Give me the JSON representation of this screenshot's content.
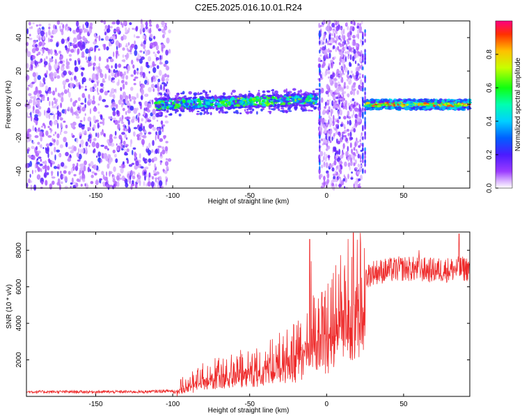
{
  "figure_title": "C2E5.2025.016.10.01.R24",
  "colors": {
    "snr_line": "#ee2a2a",
    "spectrogram_low": "#8a2be2",
    "spectrogram_high": "#ff0000",
    "axis": "#000000"
  },
  "chart_data": [
    {
      "type": "heatmap",
      "xlabel": "Height of straight line (km)",
      "ylabel": "Frequency (Hz)",
      "xlim": [
        -195,
        93
      ],
      "ylim": [
        -50,
        50
      ],
      "xticks": [
        -150,
        -100,
        -50,
        0,
        50
      ],
      "yticks": [
        -40,
        -20,
        0,
        20,
        40
      ],
      "colorbar": {
        "label": "Normalized spectral amplitude",
        "range": [
          0.0,
          1.0
        ],
        "ticks": [
          0.0,
          0.2,
          0.4,
          0.6,
          0.8
        ],
        "colormap": "rainbow (purple-blue-cyan-green-yellow-red)"
      },
      "regions": [
        {
          "x_from": -195,
          "x_to": -102,
          "description_level": 0.15,
          "spread": "full band scattered noise"
        },
        {
          "x_from": -111,
          "x_to": -6,
          "center_hz": [
            0,
            1,
            2,
            3,
            2
          ],
          "half_width_hz": 5,
          "level": 0.4
        },
        {
          "x_from": -5,
          "x_to": 23,
          "spread": "full band scattered noise"
        },
        {
          "x_from": 25,
          "x_to": 93,
          "center_hz": 0,
          "half_width_hz": 3,
          "level": 0.7
        }
      ]
    },
    {
      "type": "line",
      "xlabel": "Height of straight line (km)",
      "ylabel": "SNR (10 * v/v)",
      "xlim": [
        -195,
        93
      ],
      "ylim": [
        0,
        9000
      ],
      "xticks": [
        -150,
        -100,
        -50,
        0,
        50
      ],
      "yticks": [
        2000,
        4000,
        6000,
        8000
      ],
      "trend_x": [
        -195,
        -120,
        -100,
        -90,
        -80,
        -60,
        -40,
        -20,
        -10,
        0,
        10,
        20,
        30,
        50,
        70,
        93
      ],
      "trend_y": [
        250,
        250,
        300,
        700,
        1100,
        1500,
        1800,
        2500,
        3500,
        3800,
        5200,
        6200,
        6800,
        7000,
        6900,
        7000
      ],
      "spikes": [
        {
          "x": -11,
          "y": 8600
        },
        {
          "x": -10,
          "y": 7400
        },
        {
          "x": -3,
          "y": 5700
        },
        {
          "x": 60,
          "y": 8000
        },
        {
          "x": 86,
          "y": 8900
        }
      ]
    }
  ]
}
